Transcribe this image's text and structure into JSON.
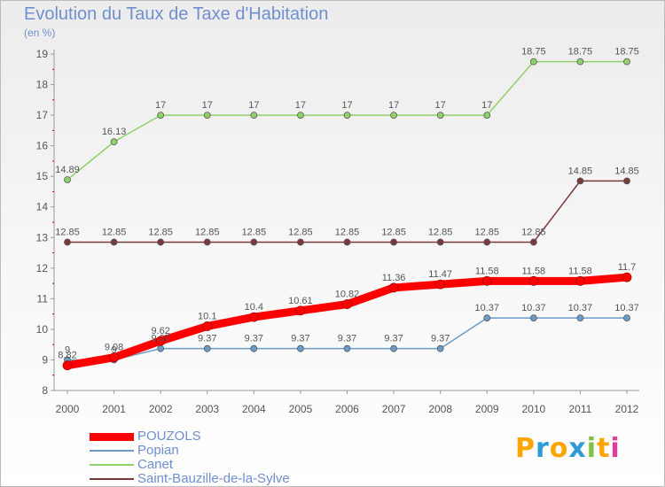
{
  "chart_data": {
    "type": "line",
    "title": "Evolution du Taux de Taxe d'Habitation",
    "subtitle": "(en %)",
    "x": [
      "2000",
      "2001",
      "2002",
      "2003",
      "2004",
      "2005",
      "2006",
      "2007",
      "2008",
      "2009",
      "2010",
      "2011",
      "2012"
    ],
    "ylim": [
      8,
      19
    ],
    "yticks": [
      "8",
      "9",
      "10",
      "11",
      "12",
      "13",
      "14",
      "15",
      "16",
      "17",
      "18",
      "19"
    ],
    "grid": false,
    "legend_position": "bottom-left",
    "series": [
      {
        "name": "POUZOLS",
        "color": "#ff0000",
        "values": [
          8.82,
          9.08,
          9.62,
          10.1,
          10.4,
          10.61,
          10.82,
          11.36,
          11.47,
          11.58,
          11.58,
          11.58,
          11.7
        ],
        "labels": [
          "8.82",
          "9.08",
          "9.62",
          "10.1",
          "10.4",
          "10.61",
          "10.82",
          "11.36",
          "11.47",
          "11.58",
          "11.58",
          "11.58",
          "11.7"
        ]
      },
      {
        "name": "Popian",
        "color": "#6b9bc8",
        "values": [
          9,
          9,
          9.37,
          9.37,
          9.37,
          9.37,
          9.37,
          9.37,
          9.37,
          10.37,
          10.37,
          10.37,
          10.37
        ],
        "labels": [
          "9",
          "9",
          "9.37",
          "9.37",
          "9.37",
          "9.37",
          "9.37",
          "9.37",
          "9.37",
          "10.37",
          "10.37",
          "10.37",
          "10.37"
        ]
      },
      {
        "name": "Canet",
        "color": "#8fd16a",
        "values": [
          14.89,
          16.13,
          17,
          17,
          17,
          17,
          17,
          17,
          17,
          17,
          18.75,
          18.75,
          18.75
        ],
        "labels": [
          "14.89",
          "16.13",
          "17",
          "17",
          "17",
          "17",
          "17",
          "17",
          "17",
          "17",
          "18.75",
          "18.75",
          "18.75"
        ]
      },
      {
        "name": "Saint-Bauzille-de-la-Sylve",
        "color": "#7a3a3a",
        "values": [
          12.85,
          12.85,
          12.85,
          12.85,
          12.85,
          12.85,
          12.85,
          12.85,
          12.85,
          12.85,
          12.85,
          14.85,
          14.85
        ],
        "labels": [
          "12.85",
          "12.85",
          "12.85",
          "12.85",
          "12.85",
          "12.85",
          "12.85",
          "12.85",
          "12.85",
          "12.85",
          "12.85",
          "14.85",
          "14.85"
        ]
      }
    ]
  },
  "logo": {
    "letters": [
      "P",
      "r",
      "o",
      "x",
      "i",
      "t",
      "i"
    ],
    "colors": [
      "#ffa500",
      "#2e9bd8",
      "#ffa500",
      "#2e9bd8",
      "#7dc243",
      "#ffa500",
      "#e03e9a"
    ]
  }
}
